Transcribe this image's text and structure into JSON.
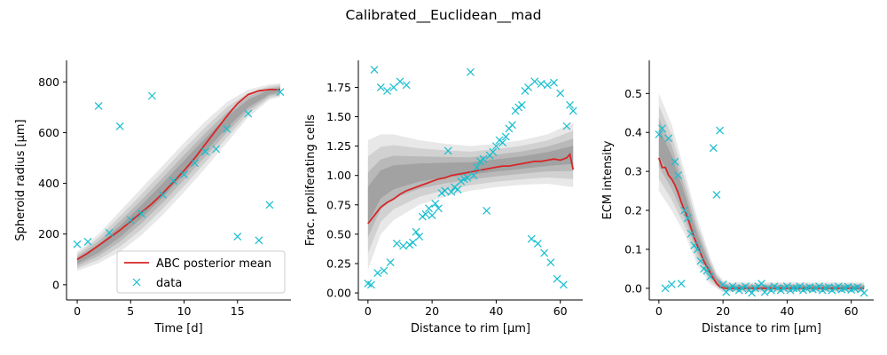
{
  "suptitle": "Calibrated__Euclidean__mad",
  "colors": {
    "mean": "#d62728",
    "data": "#17becf",
    "band": "#808080"
  },
  "legend": {
    "entries": [
      "ABC posterior mean",
      "data"
    ],
    "placement": "lower-right"
  },
  "chart_data": [
    {
      "type": "line",
      "xlabel": "Time [d]",
      "ylabel": "Spheroid radius [μm]",
      "xlim": [
        -1,
        20
      ],
      "ylim": [
        -60,
        885
      ],
      "xticks": [
        0,
        5,
        10,
        15
      ],
      "yticks": [
        0,
        200,
        400,
        600,
        800
      ],
      "band": {
        "x": [
          0,
          2,
          4,
          6,
          8,
          10,
          12,
          14,
          16,
          18,
          19
        ],
        "lower": [
          55,
          85,
          130,
          195,
          275,
          365,
          460,
          560,
          660,
          730,
          740
        ],
        "upper": [
          130,
          200,
          290,
          380,
          470,
          560,
          645,
          720,
          770,
          790,
          795
        ]
      },
      "series": [
        {
          "name": "ABC posterior mean",
          "x": [
            0,
            1,
            2,
            3,
            4,
            5,
            6,
            7,
            8,
            9,
            10,
            11,
            12,
            13,
            14,
            15,
            16,
            17,
            18,
            19
          ],
          "y": [
            100,
            125,
            155,
            185,
            215,
            250,
            285,
            320,
            360,
            405,
            450,
            500,
            555,
            610,
            665,
            715,
            750,
            765,
            770,
            770
          ]
        },
        {
          "name": "data",
          "x": [
            0,
            1,
            2,
            3,
            4,
            5,
            6,
            7,
            8,
            9,
            10,
            11,
            12,
            13,
            14,
            15,
            16,
            17,
            18,
            19
          ],
          "y": [
            160,
            170,
            705,
            205,
            625,
            255,
            280,
            745,
            355,
            410,
            435,
            480,
            525,
            535,
            615,
            190,
            675,
            175,
            315,
            760
          ]
        }
      ]
    },
    {
      "type": "line",
      "xlabel": "Distance to rim [μm]",
      "ylabel": "Frac. proliferating cells",
      "xlim": [
        -3,
        67
      ],
      "ylim": [
        -0.06,
        1.98
      ],
      "xticks": [
        0,
        20,
        40,
        60
      ],
      "yticks": [
        0.0,
        0.25,
        0.5,
        0.75,
        1.0,
        1.25,
        1.5,
        1.75
      ],
      "band": {
        "x": [
          0,
          4,
          8,
          16,
          24,
          32,
          40,
          48,
          56,
          64
        ],
        "lower": [
          0.2,
          0.5,
          0.62,
          0.75,
          0.82,
          0.87,
          0.9,
          0.92,
          0.93,
          0.9
        ],
        "upper": [
          1.3,
          1.35,
          1.35,
          1.3,
          1.27,
          1.25,
          1.27,
          1.3,
          1.35,
          1.45
        ]
      },
      "series": [
        {
          "name": "ABC posterior mean",
          "x": [
            0,
            2,
            4,
            6,
            8,
            10,
            12,
            14,
            16,
            18,
            20,
            22,
            24,
            26,
            28,
            30,
            32,
            34,
            36,
            38,
            40,
            42,
            44,
            46,
            48,
            50,
            52,
            54,
            56,
            58,
            60,
            62,
            63,
            64
          ],
          "y": [
            0.59,
            0.66,
            0.73,
            0.77,
            0.8,
            0.84,
            0.87,
            0.89,
            0.91,
            0.93,
            0.95,
            0.97,
            0.98,
            1.0,
            1.01,
            1.02,
            1.03,
            1.04,
            1.05,
            1.06,
            1.07,
            1.08,
            1.08,
            1.09,
            1.1,
            1.11,
            1.12,
            1.12,
            1.13,
            1.14,
            1.13,
            1.15,
            1.18,
            1.05
          ]
        },
        {
          "name": "data",
          "x": [
            0,
            1,
            2,
            3,
            4,
            5,
            6,
            7,
            8,
            9,
            10,
            11,
            12,
            13,
            14,
            15,
            16,
            17,
            18,
            19,
            20,
            21,
            22,
            23,
            24,
            25,
            26,
            27,
            28,
            29,
            30,
            31,
            32,
            33,
            34,
            35,
            36,
            37,
            38,
            39,
            40,
            41,
            42,
            43,
            44,
            45,
            46,
            47,
            48,
            49,
            50,
            51,
            52,
            53,
            54,
            55,
            56,
            57,
            58,
            59,
            60,
            61,
            62,
            63,
            64
          ],
          "y": [
            0.08,
            0.07,
            1.9,
            0.17,
            1.75,
            0.19,
            1.72,
            0.26,
            1.75,
            0.42,
            1.8,
            0.4,
            1.77,
            0.41,
            0.43,
            0.52,
            0.48,
            0.65,
            0.67,
            0.72,
            0.66,
            0.76,
            0.72,
            0.85,
            0.87,
            1.21,
            0.86,
            0.9,
            0.88,
            0.95,
            0.97,
            0.98,
            1.88,
            1.0,
            1.07,
            1.12,
            1.14,
            0.7,
            1.17,
            1.2,
            1.25,
            1.3,
            1.28,
            1.33,
            1.4,
            1.43,
            1.55,
            1.58,
            1.6,
            1.72,
            1.75,
            0.46,
            1.8,
            0.42,
            1.78,
            0.34,
            1.77,
            0.26,
            1.79,
            0.12,
            1.7,
            0.07,
            1.42,
            1.6,
            1.55
          ]
        }
      ]
    },
    {
      "type": "line",
      "xlabel": "Distance to rim [μm]",
      "ylabel": "ECM intensity",
      "xlim": [
        -3,
        67
      ],
      "ylim": [
        -0.03,
        0.585
      ],
      "xticks": [
        0,
        20,
        40,
        60
      ],
      "yticks": [
        0.0,
        0.1,
        0.2,
        0.3,
        0.4,
        0.5
      ],
      "band": {
        "x": [
          0,
          4,
          8,
          12,
          16,
          18,
          20,
          22,
          30,
          64
        ],
        "lower": [
          0.25,
          0.2,
          0.14,
          0.06,
          0.01,
          0.0,
          -0.01,
          -0.01,
          -0.01,
          -0.01
        ],
        "upper": [
          0.5,
          0.42,
          0.3,
          0.18,
          0.08,
          0.04,
          0.02,
          0.015,
          0.015,
          0.015
        ]
      },
      "series": [
        {
          "name": "ABC posterior mean",
          "x": [
            0,
            1,
            2,
            3,
            4,
            5,
            6,
            7,
            8,
            9,
            10,
            11,
            12,
            13,
            14,
            15,
            16,
            17,
            18,
            19,
            20,
            21,
            22,
            24,
            30,
            40,
            50,
            64
          ],
          "y": [
            0.335,
            0.31,
            0.31,
            0.29,
            0.28,
            0.265,
            0.245,
            0.22,
            0.2,
            0.18,
            0.155,
            0.13,
            0.11,
            0.09,
            0.07,
            0.055,
            0.04,
            0.025,
            0.012,
            0.004,
            0.001,
            0.0,
            0.0,
            0.0,
            0.0,
            0.0,
            0.0,
            0.0
          ]
        },
        {
          "name": "data",
          "x": [
            0,
            1,
            2,
            3,
            4,
            5,
            6,
            7,
            8,
            9,
            10,
            11,
            12,
            13,
            14,
            15,
            16,
            17,
            18,
            19,
            20,
            21,
            22,
            23,
            24,
            25,
            26,
            27,
            28,
            29,
            30,
            31,
            32,
            33,
            34,
            35,
            36,
            37,
            38,
            39,
            40,
            41,
            42,
            43,
            44,
            45,
            46,
            47,
            48,
            49,
            50,
            51,
            52,
            53,
            54,
            55,
            56,
            57,
            58,
            59,
            60,
            61,
            62,
            63,
            64
          ],
          "y": [
            0.395,
            0.41,
            0.0,
            0.385,
            0.01,
            0.325,
            0.29,
            0.012,
            0.2,
            0.18,
            0.14,
            0.11,
            0.1,
            0.07,
            0.05,
            0.045,
            0.03,
            0.36,
            0.24,
            0.405,
            0.01,
            -0.01,
            0.0,
            0.005,
            0.0,
            -0.005,
            0.0,
            0.005,
            -0.005,
            -0.012,
            0.0,
            0.005,
            0.012,
            -0.01,
            0.0,
            -0.005,
            0.005,
            0.0,
            -0.005,
            0.0,
            0.005,
            -0.005,
            0.0,
            0.0,
            0.005,
            -0.005,
            0.0,
            0.003,
            -0.003,
            0.0,
            0.005,
            -0.005,
            0.0,
            0.003,
            -0.005,
            0.0,
            0.005,
            -0.003,
            0.0,
            0.004,
            -0.004,
            0.0,
            0.003,
            -0.003,
            -0.012
          ]
        }
      ]
    }
  ]
}
